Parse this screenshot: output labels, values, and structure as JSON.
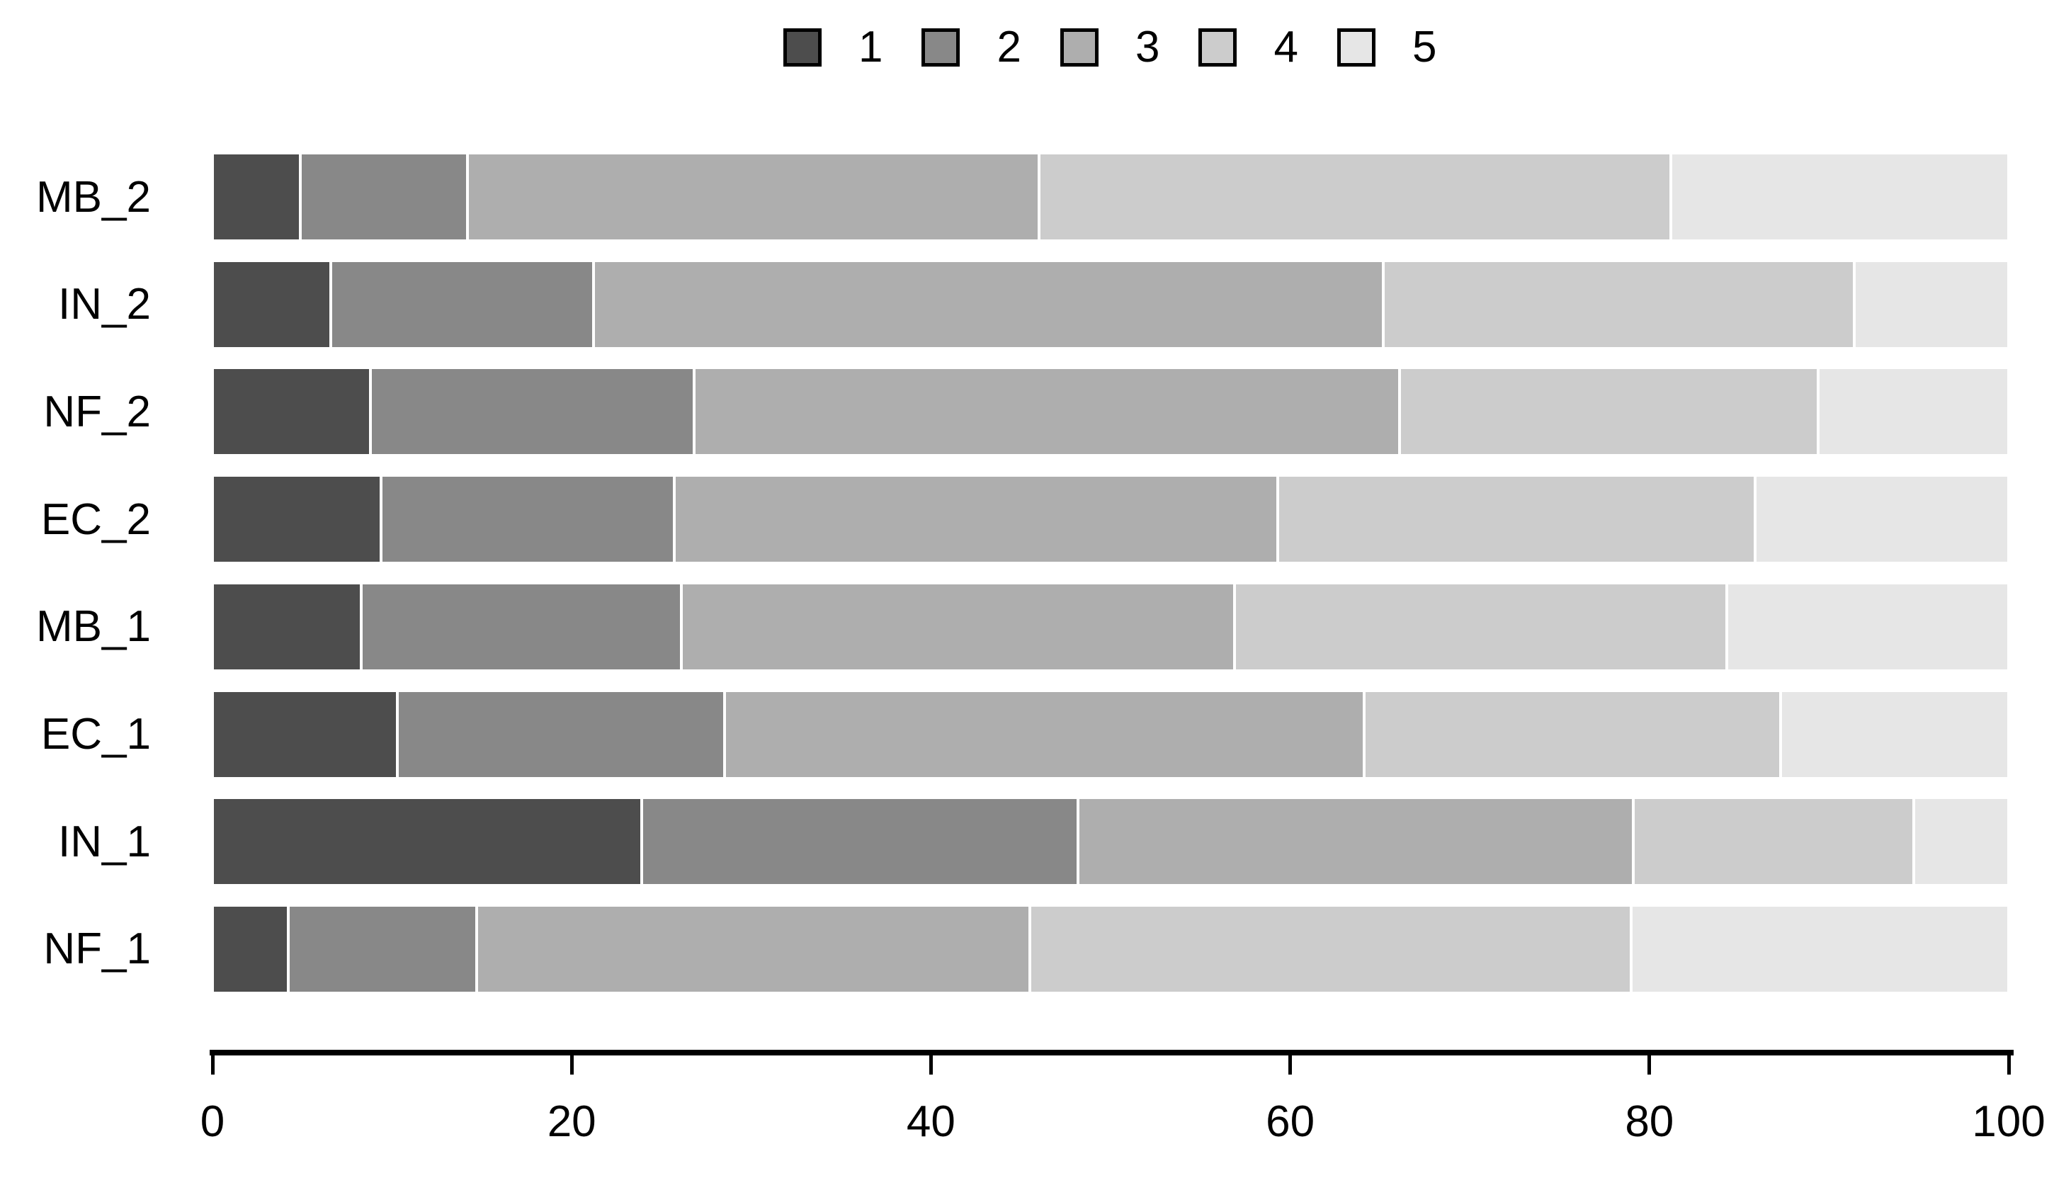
{
  "chart_data": {
    "type": "bar",
    "orientation": "horizontal",
    "stacked": true,
    "title": "",
    "xlabel": "",
    "ylabel": "",
    "xlim": [
      0,
      100
    ],
    "x_ticks": [
      0,
      20,
      40,
      60,
      80,
      100
    ],
    "grid": false,
    "background_color": "#ffffff",
    "axis_color": "#000000",
    "legend": {
      "position": "top-center",
      "labels": [
        "1",
        "2",
        "3",
        "4",
        "5"
      ],
      "swatch_border_color": "#000000"
    },
    "series_colors": [
      "#4D4D4D",
      "#888888",
      "#AEAEAE",
      "#CCCCCC",
      "#E6E6E6"
    ],
    "categories_top_to_bottom": [
      "MB_2",
      "IN_2",
      "NF_2",
      "EC_2",
      "MB_1",
      "EC_1",
      "IN_1",
      "NF_1"
    ],
    "series": [
      {
        "name": "1",
        "color": "#4D4D4D",
        "values": [
          4.9,
          6.6,
          8.8,
          9.4,
          8.3,
          10.3,
          23.9,
          4.2
        ]
      },
      {
        "name": "2",
        "color": "#888888",
        "values": [
          9.3,
          14.6,
          18.0,
          16.3,
          17.8,
          18.2,
          24.3,
          10.5
        ]
      },
      {
        "name": "3",
        "color": "#AEAEAE",
        "values": [
          31.8,
          44.0,
          39.3,
          33.6,
          30.8,
          35.6,
          30.9,
          30.8
        ]
      },
      {
        "name": "4",
        "color": "#CCCCCC",
        "values": [
          35.2,
          26.2,
          23.3,
          26.6,
          27.4,
          23.2,
          15.6,
          33.5
        ]
      },
      {
        "name": "5",
        "color": "#E6E6E6",
        "values": [
          18.8,
          8.6,
          10.6,
          14.1,
          15.7,
          12.7,
          5.3,
          21.0
        ]
      }
    ]
  }
}
